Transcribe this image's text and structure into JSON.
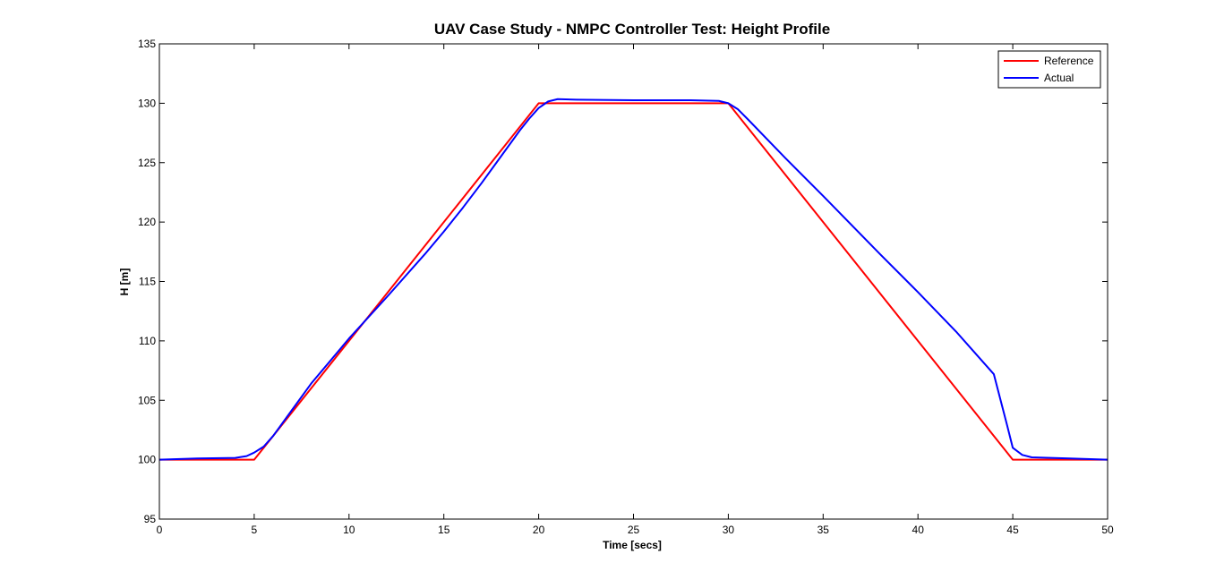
{
  "chart_data": {
    "type": "line",
    "title": "UAV Case Study - NMPC Controller Test: Height Profile",
    "xlabel": "Time [secs]",
    "ylabel": "H [m]",
    "xlim": [
      0,
      50
    ],
    "ylim": [
      95,
      135
    ],
    "xticks": [
      0,
      5,
      10,
      15,
      20,
      25,
      30,
      35,
      40,
      45,
      50
    ],
    "yticks": [
      95,
      100,
      105,
      110,
      115,
      120,
      125,
      130,
      135
    ],
    "x_tick_labels": [
      "0",
      "5",
      "10",
      "15",
      "20",
      "25",
      "30",
      "35",
      "40",
      "45",
      "50"
    ],
    "y_tick_labels": [
      "95",
      "100",
      "105",
      "110",
      "115",
      "120",
      "125",
      "130",
      "135"
    ],
    "grid": false,
    "legend_position": "top-right",
    "series": [
      {
        "name": "Reference",
        "color": "#ff0000",
        "x": [
          0,
          5,
          20,
          30,
          45,
          50
        ],
        "y": [
          100,
          100,
          130,
          130,
          100,
          100
        ]
      },
      {
        "name": "Actual",
        "color": "#0000ff",
        "x": [
          0,
          2,
          4,
          4.6,
          5,
          5.5,
          6,
          7,
          8,
          10,
          12,
          14,
          15,
          16,
          17,
          18,
          19,
          19.5,
          20,
          20.5,
          21,
          22,
          25,
          28,
          29.5,
          30,
          30.5,
          31,
          33,
          35,
          38,
          40,
          42,
          44,
          44.7,
          45,
          45.5,
          46,
          48,
          50
        ],
        "y": [
          100,
          100.1,
          100.15,
          100.3,
          100.6,
          101.1,
          102,
          104.2,
          106.4,
          110.2,
          113.7,
          117.3,
          119.2,
          121.2,
          123.3,
          125.5,
          127.7,
          128.7,
          129.6,
          130.15,
          130.35,
          130.3,
          130.25,
          130.25,
          130.2,
          130,
          129.5,
          128.7,
          125.4,
          122.2,
          117.3,
          114.1,
          110.8,
          107.2,
          102.9,
          101,
          100.4,
          100.2,
          100.1,
          100
        ]
      }
    ]
  }
}
